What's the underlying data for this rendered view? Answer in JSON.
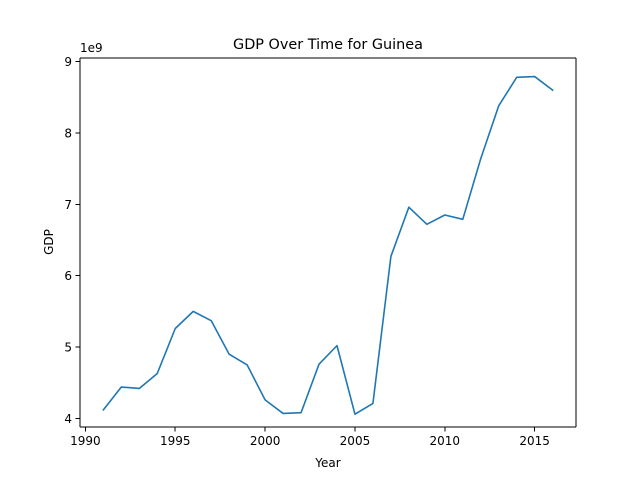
{
  "chart_data": {
    "type": "line",
    "title": "GDP Over Time for Guinea",
    "xlabel": "Year",
    "ylabel": "GDP",
    "y_offset_label": "1e9",
    "xlim": [
      1989.7,
      2017.3
    ],
    "ylim": [
      3.88,
      9.05
    ],
    "x_ticks": [
      1990,
      1995,
      2000,
      2005,
      2010,
      2015
    ],
    "y_ticks": [
      4,
      5,
      6,
      7,
      8,
      9
    ],
    "grid": false,
    "legend": "none",
    "series": [
      {
        "color": "#1f77b4",
        "x": [
          1991,
          1992,
          1993,
          1994,
          1995,
          1996,
          1997,
          1998,
          1999,
          2000,
          2001,
          2002,
          2003,
          2004,
          2005,
          2006,
          2007,
          2008,
          2009,
          2010,
          2011,
          2012,
          2013,
          2014,
          2015,
          2016
        ],
        "y": [
          4.12,
          4.44,
          4.42,
          4.63,
          5.26,
          5.5,
          5.37,
          4.9,
          4.75,
          4.26,
          4.07,
          4.08,
          4.76,
          5.02,
          4.06,
          4.21,
          6.27,
          6.96,
          6.72,
          6.85,
          6.79,
          7.64,
          8.38,
          8.78,
          8.79,
          8.6
        ]
      }
    ]
  }
}
